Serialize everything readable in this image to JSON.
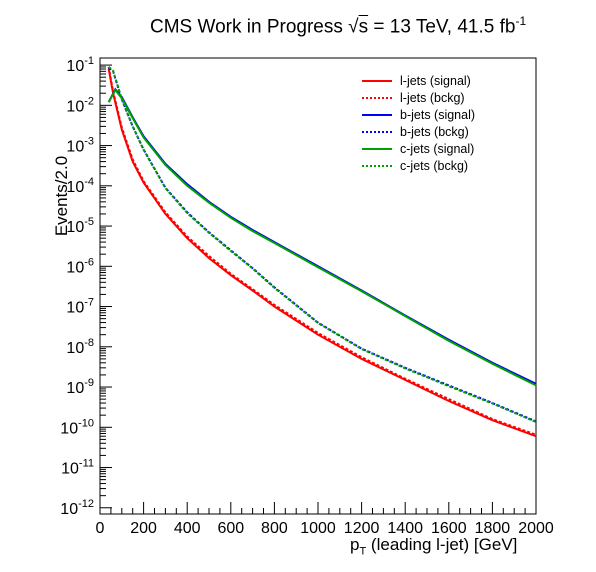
{
  "title": {
    "experiment": "CMS",
    "status": "Work in Progress",
    "sqrt_symbol": "√",
    "energy_label": "s",
    "energy_value": " = 13 TeV, 41.5 fb",
    "lumi_exponent": "-1"
  },
  "chart_data": {
    "type": "line",
    "title": "CMS Work in Progress √s = 13 TeV, 41.5 fb-1",
    "xlabel": "p_T (leading l-jet) [GeV]",
    "xlabel_main": "p",
    "xlabel_sub": "T",
    "xlabel_rest": " (leading l-jet) [GeV]",
    "ylabel": "Events/2.0",
    "xlim": [
      0,
      2000
    ],
    "ylim": [
      7e-13,
      0.15
    ],
    "yscale": "log",
    "grid": false,
    "legend_placement": "top-right",
    "x_ticks": [
      0,
      200,
      400,
      600,
      800,
      1000,
      1200,
      1400,
      1600,
      1800,
      2000
    ],
    "x_tick_labels": [
      "0",
      "200",
      "400",
      "600",
      "800",
      "1000",
      "1200",
      "1400",
      "1600",
      "1800",
      "2000"
    ],
    "y_ticks": [
      -12,
      -11,
      -10,
      -9,
      -8,
      -7,
      -6,
      -5,
      -4,
      -3,
      -2,
      -1
    ],
    "y_tick_labels": [
      "10^-12",
      "10^-11",
      "10^-10",
      "10^-9",
      "10^-8",
      "10^-7",
      "10^-6",
      "10^-5",
      "10^-4",
      "10^-3",
      "10^-2",
      "10^-1"
    ],
    "series": [
      {
        "name": "l-jets (signal)",
        "color": "#ff0000",
        "style": "solid",
        "x": [
          40,
          60,
          100,
          150,
          200,
          300,
          400,
          500,
          600,
          700,
          800,
          1000,
          1200,
          1400,
          1600,
          1800,
          2000
        ],
        "y": [
          0.08,
          0.02,
          0.0025,
          0.0004,
          0.00012,
          2e-05,
          5e-06,
          1.6e-06,
          6e-07,
          2.5e-07,
          1e-07,
          2e-08,
          5e-09,
          1.5e-09,
          4.5e-10,
          1.5e-10,
          6e-11
        ]
      },
      {
        "name": "l-jets (bckg)",
        "color": "#ff0000",
        "style": "dotted",
        "x": [
          40,
          60,
          100,
          150,
          200,
          300,
          400,
          500,
          600,
          700,
          800,
          1000,
          1200,
          1400,
          1600,
          1800,
          2000
        ],
        "y": [
          0.09,
          0.022,
          0.0028,
          0.00045,
          0.00013,
          2.2e-05,
          5.5e-06,
          1.8e-06,
          6.5e-07,
          2.7e-07,
          1.1e-07,
          2.2e-08,
          5.5e-09,
          1.6e-09,
          5e-10,
          1.6e-10,
          6.5e-11
        ]
      },
      {
        "name": "b-jets (signal)",
        "color": "#0000ff",
        "style": "solid",
        "x": [
          40,
          70,
          100,
          150,
          200,
          300,
          400,
          500,
          600,
          700,
          800,
          900,
          1000,
          1200,
          1400,
          1600,
          1800,
          2000
        ],
        "y": [
          0.012,
          0.025,
          0.016,
          0.005,
          0.0017,
          0.00035,
          0.00011,
          4e-05,
          1.7e-05,
          8e-06,
          4e-06,
          2e-06,
          1e-06,
          2.5e-07,
          6e-08,
          1.5e-08,
          4e-09,
          1.2e-09
        ]
      },
      {
        "name": "b-jets (bckg)",
        "color": "#0000ff",
        "style": "dotted",
        "x": [
          40,
          60,
          100,
          150,
          200,
          300,
          400,
          500,
          600,
          700,
          800,
          1000,
          1200,
          1400,
          1600,
          1800,
          2000
        ],
        "y": [
          0.085,
          0.07,
          0.014,
          0.003,
          0.0008,
          9e-05,
          2.2e-05,
          7e-06,
          2.5e-06,
          9e-07,
          3e-07,
          4e-08,
          9e-09,
          3e-09,
          1.1e-09,
          4e-10,
          1.4e-10
        ]
      },
      {
        "name": "c-jets (signal)",
        "color": "#00a000",
        "style": "solid",
        "x": [
          40,
          70,
          100,
          150,
          200,
          300,
          400,
          500,
          600,
          700,
          800,
          900,
          1000,
          1200,
          1400,
          1600,
          1800,
          2000
        ],
        "y": [
          0.012,
          0.024,
          0.015,
          0.0048,
          0.0016,
          0.00033,
          0.0001,
          3.8e-05,
          1.6e-05,
          7.5e-06,
          3.8e-06,
          1.9e-06,
          9.5e-07,
          2.4e-07,
          5.8e-08,
          1.4e-08,
          3.8e-09,
          1.1e-09
        ]
      },
      {
        "name": "c-jets (bckg)",
        "color": "#00a000",
        "style": "dotted",
        "x": [
          40,
          60,
          100,
          150,
          200,
          300,
          400,
          500,
          600,
          700,
          800,
          1000,
          1200,
          1400,
          1600,
          1800,
          2000
        ],
        "y": [
          0.09,
          0.072,
          0.014,
          0.003,
          0.00078,
          8.8e-05,
          2.1e-05,
          6.8e-06,
          2.4e-06,
          8.8e-07,
          2.9e-07,
          3.9e-08,
          8.8e-09,
          2.9e-09,
          1.05e-09,
          3.9e-10,
          1.35e-10
        ]
      }
    ]
  }
}
